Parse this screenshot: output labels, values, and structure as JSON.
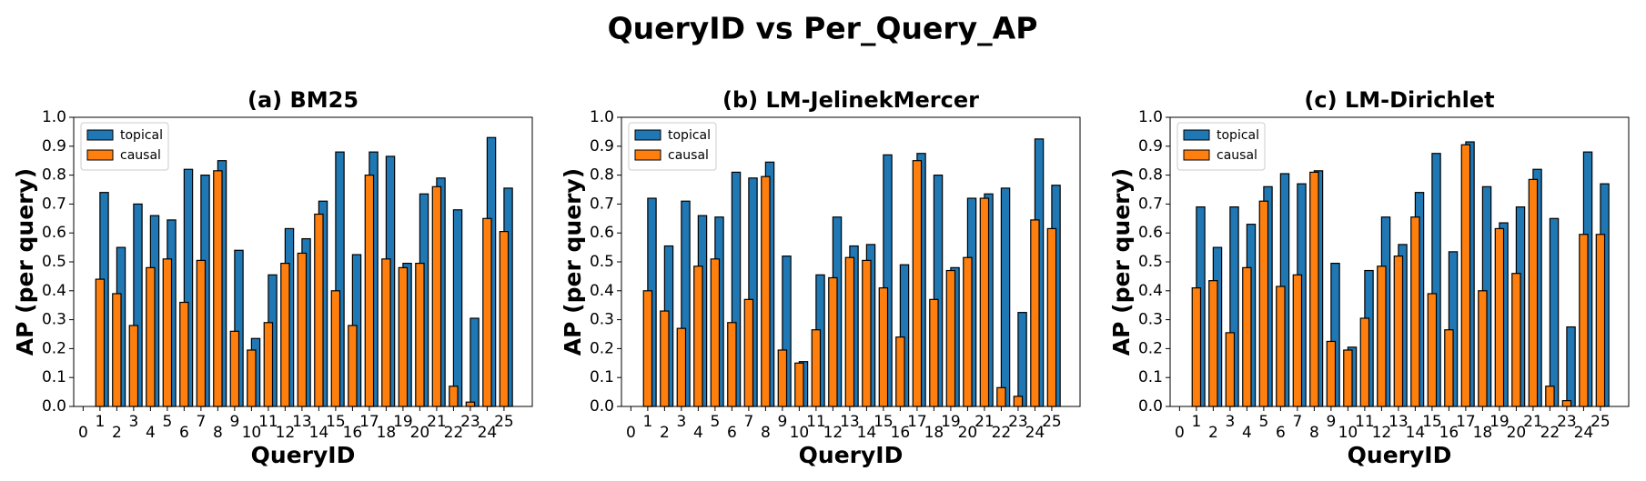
{
  "title": "QueryID vs Per_Query_AP",
  "chart_data": [
    {
      "type": "bar",
      "title": "(a) BM25",
      "xlabel": "QueryID",
      "ylabel": "AP (per query)",
      "x": [
        1,
        2,
        3,
        4,
        5,
        6,
        7,
        8,
        9,
        10,
        11,
        12,
        13,
        14,
        15,
        16,
        17,
        18,
        19,
        20,
        21,
        22,
        23,
        24,
        25
      ],
      "series": [
        {
          "name": "topical",
          "color": "#1f77b4",
          "values": [
            0.74,
            0.55,
            0.7,
            0.66,
            0.645,
            0.82,
            0.8,
            0.85,
            0.54,
            0.235,
            0.455,
            0.615,
            0.58,
            0.71,
            0.88,
            0.525,
            0.88,
            0.865,
            0.495,
            0.735,
            0.79,
            0.68,
            0.305,
            0.93,
            0.755
          ]
        },
        {
          "name": "causal",
          "color": "#ff7f0e",
          "values": [
            0.44,
            0.39,
            0.28,
            0.48,
            0.51,
            0.36,
            0.505,
            0.815,
            0.26,
            0.195,
            0.29,
            0.495,
            0.53,
            0.665,
            0.4,
            0.28,
            0.8,
            0.51,
            0.48,
            0.495,
            0.76,
            0.07,
            0.015,
            0.65,
            0.605
          ]
        }
      ],
      "xlim": [
        -0.56,
        26.68
      ],
      "ylim": [
        0,
        1
      ],
      "xticks": [
        0,
        1,
        2,
        3,
        4,
        5,
        6,
        7,
        8,
        9,
        10,
        11,
        12,
        13,
        14,
        15,
        16,
        17,
        18,
        19,
        20,
        21,
        22,
        23,
        24,
        25
      ],
      "yticks": [
        {
          "value": 0,
          "label": "0.0"
        },
        0.1,
        0.2,
        0.3,
        0.4,
        0.5,
        0.6,
        0.7,
        0.8,
        0.9,
        {
          "value": 1,
          "label": "1.0"
        }
      ],
      "legend": "upper left"
    },
    {
      "type": "bar",
      "title": "(b) LM-JelinekMercer",
      "xlabel": "QueryID",
      "ylabel": "AP (per query)",
      "x": [
        1,
        2,
        3,
        4,
        5,
        6,
        7,
        8,
        9,
        10,
        11,
        12,
        13,
        14,
        15,
        16,
        17,
        18,
        19,
        20,
        21,
        22,
        23,
        24,
        25
      ],
      "series": [
        {
          "name": "topical",
          "color": "#1f77b4",
          "values": [
            0.72,
            0.555,
            0.71,
            0.66,
            0.655,
            0.81,
            0.79,
            0.845,
            0.52,
            0.155,
            0.455,
            0.655,
            0.555,
            0.56,
            0.87,
            0.49,
            0.875,
            0.8,
            0.48,
            0.72,
            0.735,
            0.755,
            0.325,
            0.925,
            0.765
          ]
        },
        {
          "name": "causal",
          "color": "#ff7f0e",
          "values": [
            0.4,
            0.33,
            0.27,
            0.485,
            0.51,
            0.29,
            0.37,
            0.795,
            0.195,
            0.15,
            0.265,
            0.445,
            0.515,
            0.505,
            0.41,
            0.24,
            0.85,
            0.37,
            0.47,
            0.515,
            0.72,
            0.065,
            0.035,
            0.645,
            0.615
          ]
        }
      ],
      "xlim": [
        -0.56,
        26.68
      ],
      "ylim": [
        0,
        1
      ],
      "xticks": [
        0,
        1,
        2,
        3,
        4,
        5,
        6,
        7,
        8,
        9,
        10,
        11,
        12,
        13,
        14,
        15,
        16,
        17,
        18,
        19,
        20,
        21,
        22,
        23,
        24,
        25
      ],
      "yticks": [
        {
          "value": 0,
          "label": "0.0"
        },
        0.1,
        0.2,
        0.3,
        0.4,
        0.5,
        0.6,
        0.7,
        0.8,
        0.9,
        {
          "value": 1,
          "label": "1.0"
        }
      ],
      "legend": "upper left"
    },
    {
      "type": "bar",
      "title": "(c) LM-Dirichlet",
      "xlabel": "QueryID",
      "ylabel": "AP (per query)",
      "x": [
        1,
        2,
        3,
        4,
        5,
        6,
        7,
        8,
        9,
        10,
        11,
        12,
        13,
        14,
        15,
        16,
        17,
        18,
        19,
        20,
        21,
        22,
        23,
        24,
        25
      ],
      "series": [
        {
          "name": "topical",
          "color": "#1f77b4",
          "values": [
            0.69,
            0.55,
            0.69,
            0.63,
            0.76,
            0.805,
            0.77,
            0.815,
            0.495,
            0.205,
            0.47,
            0.655,
            0.56,
            0.74,
            0.875,
            0.535,
            0.915,
            0.76,
            0.635,
            0.69,
            0.82,
            0.65,
            0.275,
            0.88,
            0.77
          ]
        },
        {
          "name": "causal",
          "color": "#ff7f0e",
          "values": [
            0.41,
            0.435,
            0.255,
            0.48,
            0.71,
            0.415,
            0.455,
            0.81,
            0.225,
            0.195,
            0.305,
            0.485,
            0.52,
            0.655,
            0.39,
            0.265,
            0.905,
            0.4,
            0.615,
            0.46,
            0.785,
            0.07,
            0.02,
            0.595,
            0.595
          ]
        }
      ],
      "xlim": [
        -0.56,
        26.68
      ],
      "ylim": [
        0,
        1
      ],
      "xticks": [
        0,
        1,
        2,
        3,
        4,
        5,
        6,
        7,
        8,
        9,
        10,
        11,
        12,
        13,
        14,
        15,
        16,
        17,
        18,
        19,
        20,
        21,
        22,
        23,
        24,
        25
      ],
      "yticks": [
        {
          "value": 0,
          "label": "0.0"
        },
        0.1,
        0.2,
        0.3,
        0.4,
        0.5,
        0.6,
        0.7,
        0.8,
        0.9,
        {
          "value": 1,
          "label": "1.0"
        }
      ],
      "legend": "upper left"
    }
  ]
}
